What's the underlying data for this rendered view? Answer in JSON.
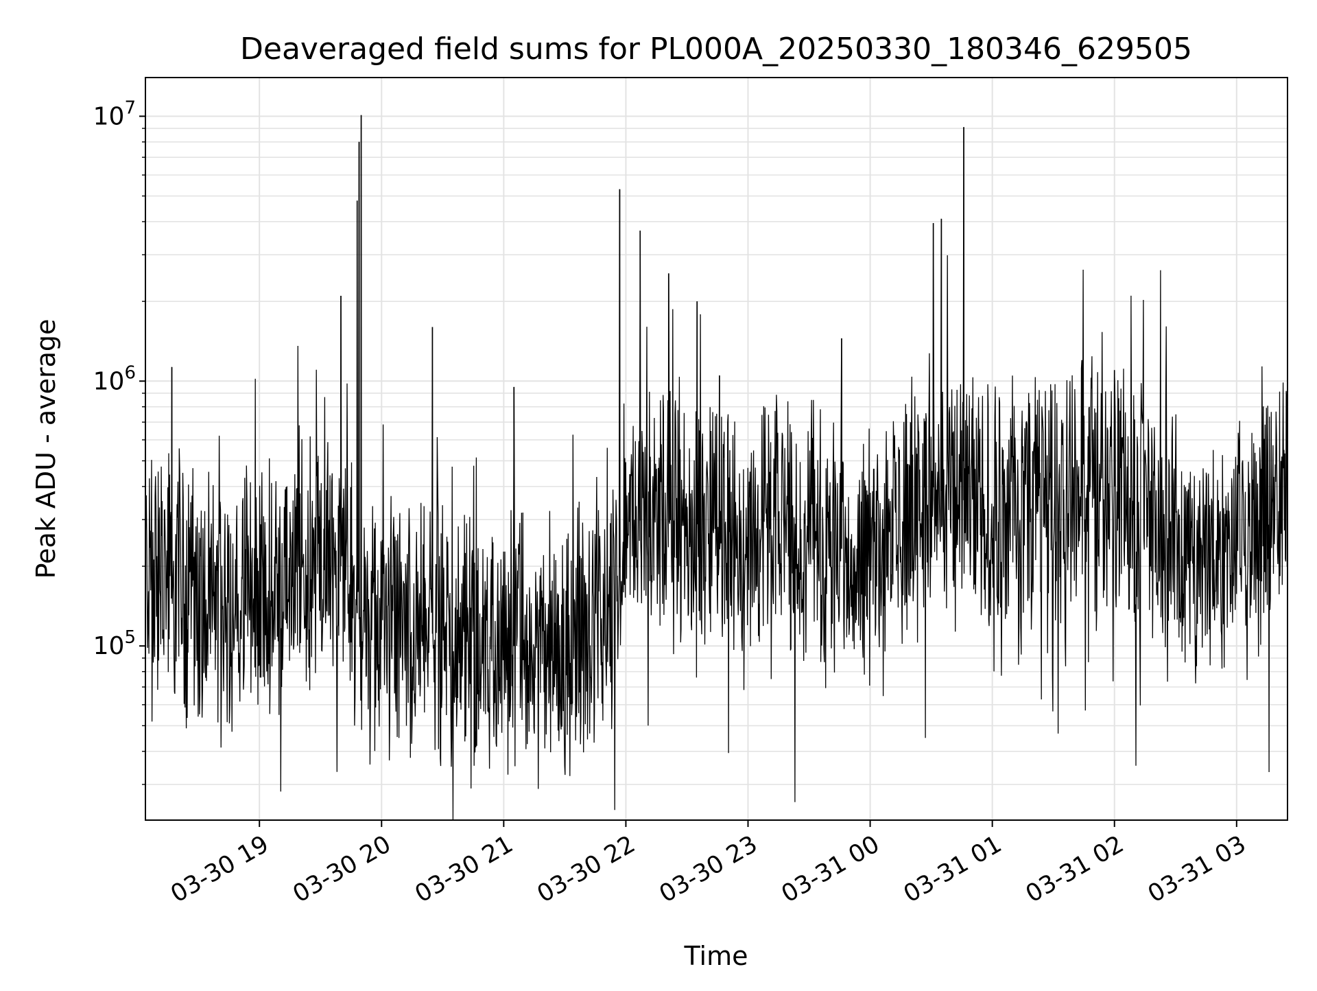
{
  "chart_data": {
    "type": "line",
    "title": "Deaveraged field sums for PL000A_20250330_180346_629505",
    "xlabel": "Time",
    "ylabel": "Peak ADU - average",
    "y_scale": "log",
    "ylim": [
      22000,
      14000000
    ],
    "xlim": [
      "2025-03-30 18:04",
      "2025-03-31 03:25"
    ],
    "grid": true,
    "line_color": "#000000",
    "x_ticks": [
      {
        "time": "2025-03-30 19:00",
        "label": "03-30 19"
      },
      {
        "time": "2025-03-30 20:00",
        "label": "03-30 20"
      },
      {
        "time": "2025-03-30 21:00",
        "label": "03-30 21"
      },
      {
        "time": "2025-03-30 22:00",
        "label": "03-30 22"
      },
      {
        "time": "2025-03-30 23:00",
        "label": "03-30 23"
      },
      {
        "time": "2025-03-31 00:00",
        "label": "03-31 00"
      },
      {
        "time": "2025-03-31 01:00",
        "label": "03-31 01"
      },
      {
        "time": "2025-03-31 02:00",
        "label": "03-31 02"
      },
      {
        "time": "2025-03-31 03:00",
        "label": "03-31 03"
      }
    ],
    "y_ticks": [
      {
        "value": 100000,
        "base": "10",
        "exp": "5"
      },
      {
        "value": 1000000,
        "base": "10",
        "exp": "6"
      },
      {
        "value": 10000000,
        "base": "10",
        "exp": "7"
      }
    ],
    "baseline": [
      {
        "time": "2025-03-30 18:04",
        "value": 200000
      },
      {
        "time": "2025-03-30 18:30",
        "value": 140000
      },
      {
        "time": "2025-03-30 19:00",
        "value": 150000
      },
      {
        "time": "2025-03-30 19:20",
        "value": 200000
      },
      {
        "time": "2025-03-30 19:40",
        "value": 200000
      },
      {
        "time": "2025-03-30 19:50",
        "value": 120000
      },
      {
        "time": "2025-03-30 20:30",
        "value": 110000
      },
      {
        "time": "2025-03-30 21:00",
        "value": 100000
      },
      {
        "time": "2025-03-30 21:30",
        "value": 100000
      },
      {
        "time": "2025-03-30 21:55",
        "value": 150000
      },
      {
        "time": "2025-03-30 22:00",
        "value": 300000
      },
      {
        "time": "2025-03-30 23:00",
        "value": 280000
      },
      {
        "time": "2025-03-31 00:00",
        "value": 220000
      },
      {
        "time": "2025-03-31 00:30",
        "value": 400000
      },
      {
        "time": "2025-03-31 01:00",
        "value": 320000
      },
      {
        "time": "2025-03-31 02:00",
        "value": 400000
      },
      {
        "time": "2025-03-31 02:40",
        "value": 200000
      },
      {
        "time": "2025-03-31 03:25",
        "value": 350000
      }
    ],
    "spikes": [
      {
        "time": "2025-03-30 18:17",
        "value": 1130000
      },
      {
        "time": "2025-03-30 19:40",
        "value": 2100000
      },
      {
        "time": "2025-03-30 19:48",
        "value": 4800000
      },
      {
        "time": "2025-03-30 19:49",
        "value": 8000000
      },
      {
        "time": "2025-03-30 19:50",
        "value": 10100000
      },
      {
        "time": "2025-03-30 20:25",
        "value": 1600000
      },
      {
        "time": "2025-03-30 21:05",
        "value": 950000
      },
      {
        "time": "2025-03-30 21:57",
        "value": 5300000
      },
      {
        "time": "2025-03-30 22:07",
        "value": 3700000
      },
      {
        "time": "2025-03-30 22:21",
        "value": 2550000
      },
      {
        "time": "2025-03-30 22:35",
        "value": 2000000
      },
      {
        "time": "2025-03-30 22:46",
        "value": 1050000
      },
      {
        "time": "2025-03-30 23:46",
        "value": 1450000
      },
      {
        "time": "2025-03-31 00:31",
        "value": 3950000
      },
      {
        "time": "2025-03-31 00:35",
        "value": 4100000
      },
      {
        "time": "2025-03-31 00:46",
        "value": 9100000
      },
      {
        "time": "2025-03-31 01:44",
        "value": 1200000
      },
      {
        "time": "2025-03-31 02:00",
        "value": 1100000
      }
    ]
  }
}
